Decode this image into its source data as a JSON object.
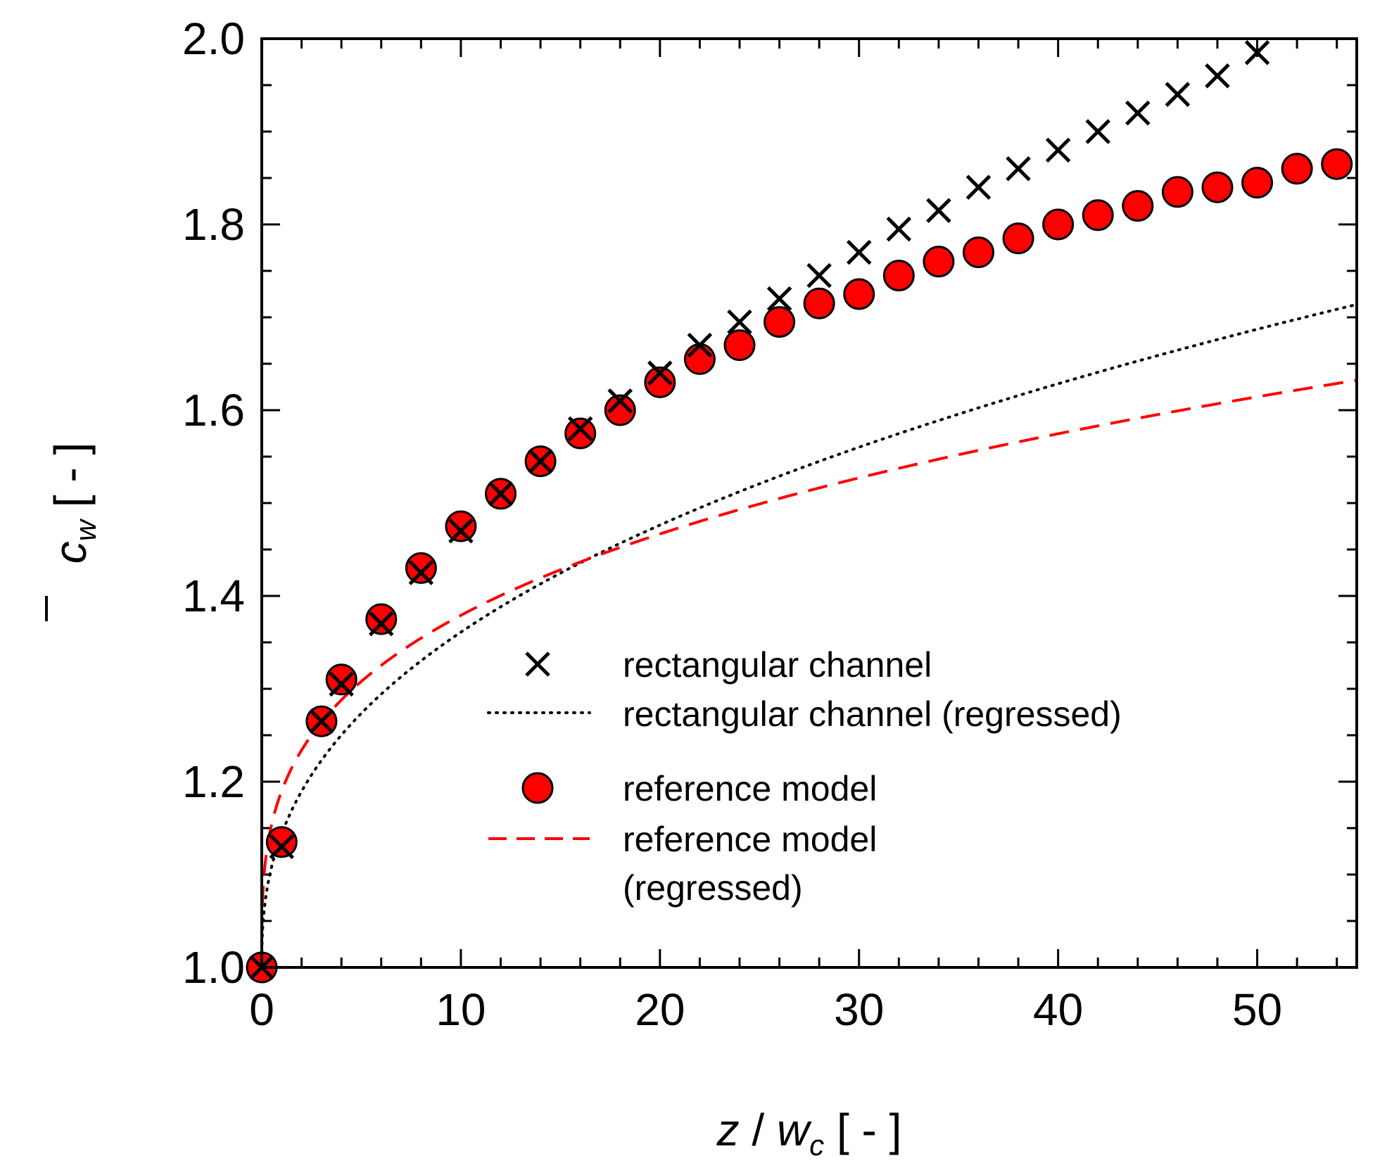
{
  "chart_data": {
    "type": "scatter",
    "xlabel": {
      "var": "z",
      "sep": " / ",
      "var2": "w",
      "sub": "c",
      "unit": " [ - ]"
    },
    "ylabel": {
      "var": "c",
      "sub": "w",
      "unit": " [ - ]"
    },
    "xlim": [
      0,
      55
    ],
    "ylim": [
      1.0,
      2.0
    ],
    "xticks": [
      "0",
      "10",
      "20",
      "30",
      "40",
      "50"
    ],
    "yticks": [
      "1.0",
      "1.2",
      "1.4",
      "1.6",
      "1.8",
      "2.0"
    ],
    "series": [
      {
        "name": "rectangular channel",
        "marker": "x",
        "color": "#000000",
        "x": [
          0,
          1,
          3,
          4,
          6,
          8,
          10,
          12,
          14,
          16,
          18,
          20,
          22,
          24,
          26,
          28,
          30,
          32,
          34,
          36,
          38,
          40,
          42,
          44,
          46,
          48,
          50
        ],
        "y": [
          1.0,
          1.13,
          1.265,
          1.305,
          1.37,
          1.425,
          1.47,
          1.51,
          1.545,
          1.58,
          1.61,
          1.64,
          1.67,
          1.695,
          1.72,
          1.745,
          1.77,
          1.795,
          1.815,
          1.84,
          1.86,
          1.88,
          1.9,
          1.92,
          1.94,
          1.96,
          1.985
        ]
      },
      {
        "name": "rectangular channel (regressed)",
        "line": "dotted",
        "color": "#000000",
        "model": {
          "a": 0.1437,
          "b": 0.4
        }
      },
      {
        "name": "reference model",
        "marker": "circle",
        "color": "#ff0000",
        "x": [
          0,
          1,
          3,
          4,
          6,
          8,
          10,
          12,
          14,
          16,
          18,
          20,
          22,
          24,
          26,
          28,
          30,
          32,
          34,
          36,
          38,
          40,
          42,
          44,
          46,
          48,
          50,
          52,
          54
        ],
        "y": [
          1.0,
          1.135,
          1.265,
          1.31,
          1.375,
          1.43,
          1.475,
          1.51,
          1.545,
          1.575,
          1.6,
          1.63,
          1.655,
          1.67,
          1.695,
          1.715,
          1.725,
          1.745,
          1.76,
          1.77,
          1.785,
          1.8,
          1.81,
          1.82,
          1.835,
          1.84,
          1.845,
          1.86,
          1.865
        ]
      },
      {
        "name": "reference model\n(regressed)",
        "line": "dashed",
        "color": "#ff0000",
        "model": {
          "a": 0.19,
          "b": 0.3
        }
      }
    ],
    "legend": {
      "position": "bottom-right",
      "entries": [
        {
          "label": "rectangular channel"
        },
        {
          "label": "rectangular channel (regressed)"
        },
        {
          "label": "reference model"
        },
        {
          "label": "reference model",
          "label2": "(regressed)"
        }
      ]
    }
  }
}
